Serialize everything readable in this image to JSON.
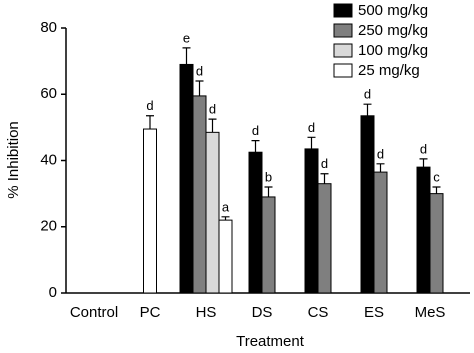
{
  "chart_data": {
    "type": "bar",
    "x_label": "Treatment",
    "y_label": "% Inhibition",
    "categories": [
      "Control",
      "PC",
      "HS",
      "DS",
      "CS",
      "ES",
      "MeS"
    ],
    "ylim": [
      0,
      80
    ],
    "yticks": [
      0,
      20,
      40,
      60,
      80
    ],
    "legend": "top-right",
    "series": [
      {
        "name": "500 mg/kg",
        "color": "#000000",
        "values": [
          null,
          null,
          69,
          42.5,
          43.5,
          53.5,
          38
        ],
        "errors": [
          null,
          null,
          5,
          3.5,
          3.5,
          3.5,
          2.5
        ],
        "letters": [
          null,
          null,
          "e",
          "d",
          "d",
          "d",
          "d"
        ]
      },
      {
        "name": "250 mg/kg",
        "color": "#7f7f7f",
        "values": [
          null,
          null,
          59.5,
          29,
          33,
          36.5,
          30
        ],
        "errors": [
          null,
          null,
          4.5,
          3,
          3,
          2.5,
          2
        ],
        "letters": [
          null,
          null,
          "d",
          "b",
          "d",
          "d",
          "c"
        ]
      },
      {
        "name": "100 mg/kg",
        "color": "#d9d9d9",
        "values": [
          null,
          null,
          48.5,
          null,
          null,
          null,
          null
        ],
        "errors": [
          null,
          null,
          4,
          null,
          null,
          null,
          null
        ],
        "letters": [
          null,
          null,
          "d",
          null,
          null,
          null,
          null
        ]
      },
      {
        "name": "25 mg/kg",
        "color": "#ffffff",
        "values": [
          null,
          49.5,
          22,
          null,
          null,
          null,
          null
        ],
        "errors": [
          null,
          4,
          1,
          null,
          null,
          null,
          null
        ],
        "letters": [
          null,
          "d",
          "a",
          null,
          null,
          null,
          null
        ]
      }
    ]
  }
}
